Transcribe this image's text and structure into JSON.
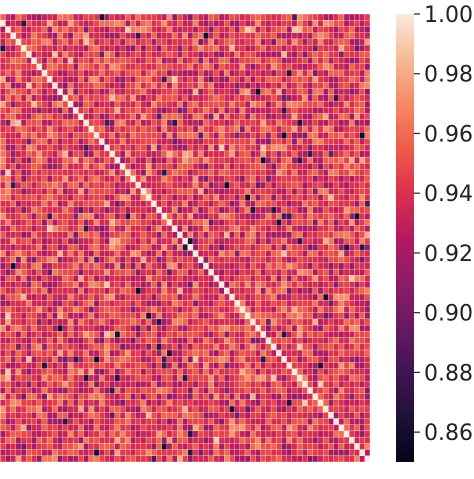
{
  "chart_data": {
    "type": "heatmap",
    "title": "",
    "xlabel": "",
    "ylabel": "",
    "grid": false,
    "matrix_size": 72,
    "diagonal_value": 1.0,
    "value_range": [
      0.85,
      1.0
    ],
    "off_diagonal_typical_range": [
      0.91,
      0.975
    ],
    "colormap": "rocket",
    "cell_gap_color": "#ffffff",
    "colorbar": {
      "placement": "right",
      "ticks": [
        0.86,
        0.88,
        0.9,
        0.92,
        0.94,
        0.96,
        0.98,
        1.0
      ],
      "tick_labels": [
        "0.86",
        "0.88",
        "0.90",
        "0.92",
        "0.94",
        "0.96",
        "0.98",
        "1.00"
      ]
    }
  }
}
